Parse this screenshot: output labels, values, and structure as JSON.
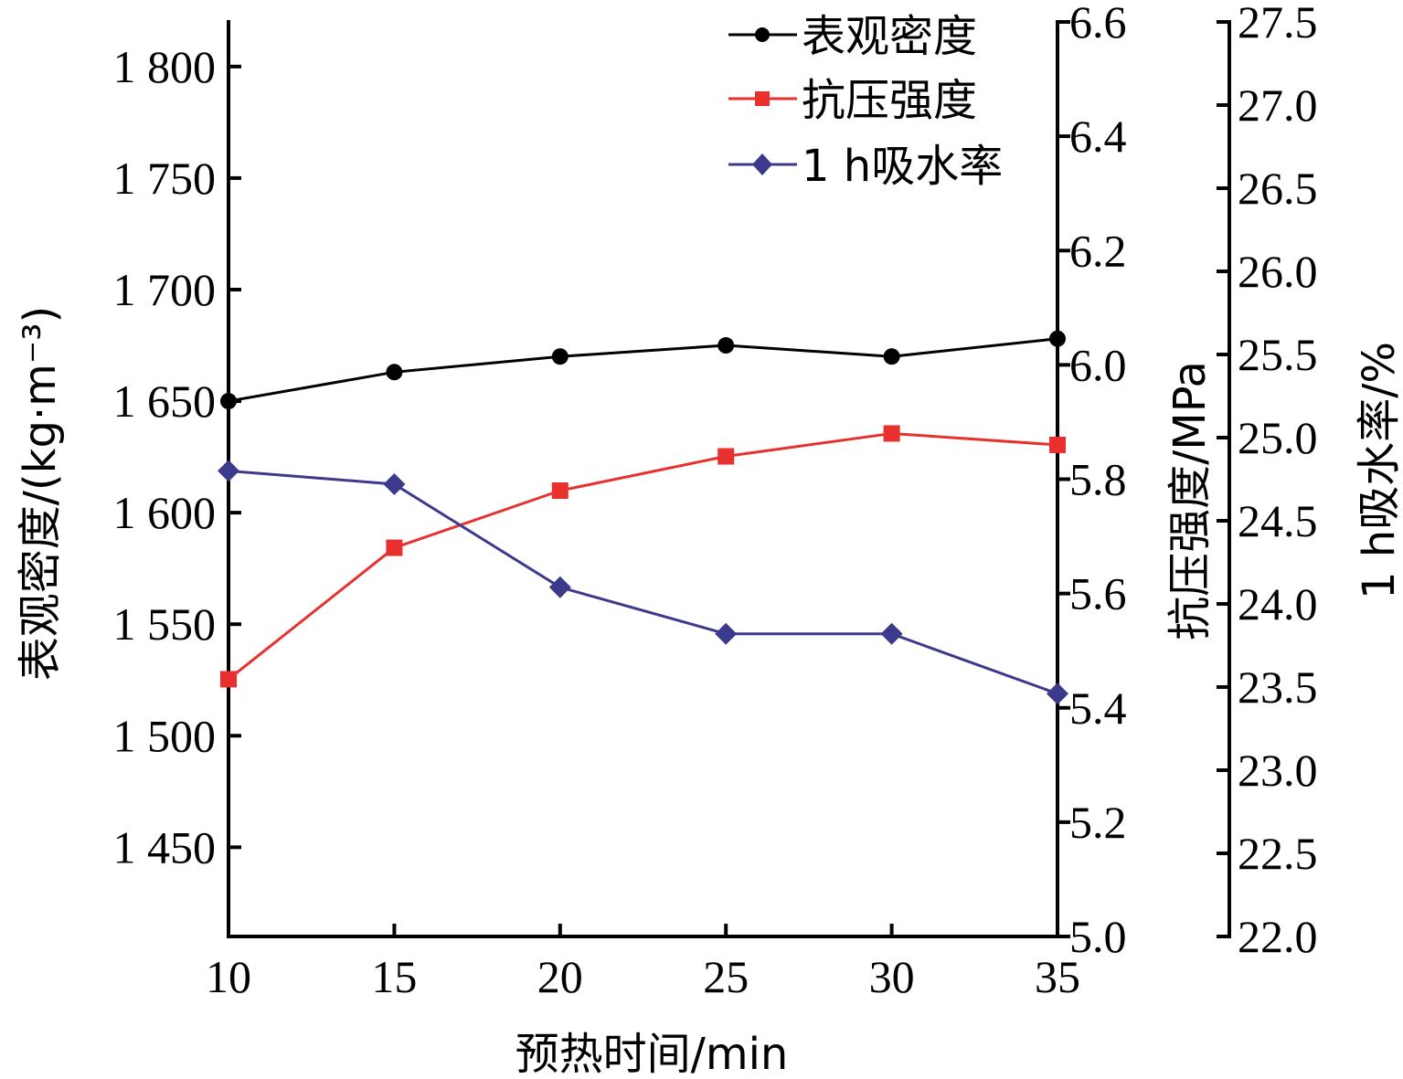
{
  "chart_data": {
    "type": "line",
    "x": [
      10,
      15,
      20,
      25,
      30,
      35
    ],
    "xlabel": "预热时间/min",
    "xlim": [
      10,
      35
    ],
    "x_ticks": [
      "10",
      "15",
      "20",
      "25",
      "30",
      "35"
    ],
    "axes": {
      "left": {
        "label": "表观密度/(kg·m⁻³)",
        "lim": [
          1410,
          1820
        ],
        "ticks": [
          1450,
          1500,
          1550,
          1600,
          1650,
          1700,
          1750,
          1800
        ],
        "tick_labels": [
          "1 450",
          "1 500",
          "1 550",
          "1 600",
          "1 650",
          "1 700",
          "1 750",
          "1 800"
        ]
      },
      "right1": {
        "label": "抗压强度/MPa",
        "lim": [
          5.0,
          6.6
        ],
        "ticks": [
          5.0,
          5.2,
          5.4,
          5.6,
          5.8,
          6.0,
          6.2,
          6.4,
          6.6
        ],
        "tick_labels": [
          "5.0",
          "5.2",
          "5.4",
          "5.6",
          "5.8",
          "6.0",
          "6.2",
          "6.4",
          "6.6"
        ]
      },
      "right2": {
        "label": "1 h吸水率/%",
        "lim": [
          22.0,
          27.5
        ],
        "ticks": [
          22.0,
          22.5,
          23.0,
          23.5,
          24.0,
          24.5,
          25.0,
          25.5,
          26.0,
          26.5,
          27.0,
          27.5
        ],
        "tick_labels": [
          "22.0",
          "22.5",
          "23.0",
          "23.5",
          "24.0",
          "24.5",
          "25.0",
          "25.5",
          "26.0",
          "26.5",
          "27.0",
          "27.5"
        ]
      }
    },
    "series": [
      {
        "name": "表观密度",
        "axis": "left",
        "color": "#000000",
        "marker": "circle",
        "values": [
          1650,
          1663,
          1670,
          1675,
          1670,
          1678
        ]
      },
      {
        "name": "抗压强度",
        "axis": "right1",
        "color": "#e8312f",
        "marker": "square",
        "values": [
          5.45,
          5.68,
          5.78,
          5.84,
          5.88,
          5.86
        ]
      },
      {
        "name": "1 h吸水率",
        "axis": "right2",
        "color": "#3c3a8c",
        "marker": "diamond",
        "values": [
          24.8,
          24.72,
          24.1,
          23.82,
          23.82,
          23.46
        ]
      }
    ],
    "legend": "top-right",
    "grid": false
  }
}
